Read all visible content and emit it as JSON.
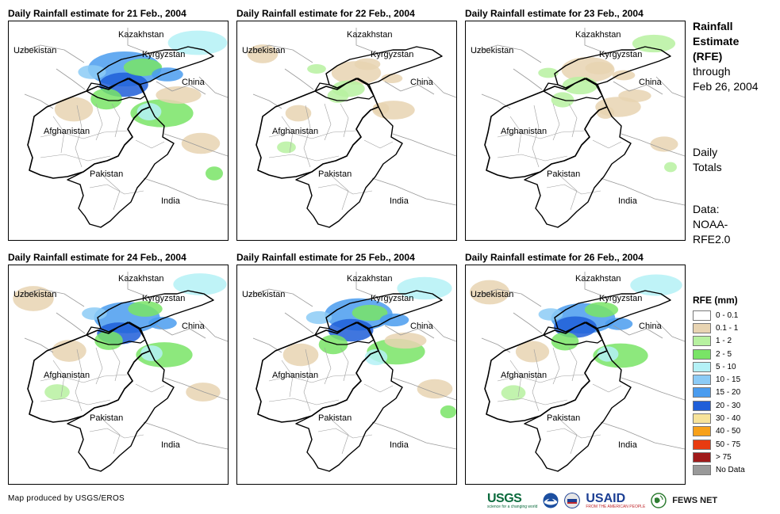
{
  "panels": [
    {
      "title": "Daily Rainfall estimate for 21 Feb., 2004",
      "intensity": 1.0
    },
    {
      "title": "Daily Rainfall estimate for 22 Feb., 2004",
      "intensity": 0.35
    },
    {
      "title": "Daily Rainfall estimate for 23 Feb., 2004",
      "intensity": 0.45
    },
    {
      "title": "Daily Rainfall estimate for 24 Feb., 2004",
      "intensity": 0.8
    },
    {
      "title": "Daily Rainfall estimate for 25 Feb., 2004",
      "intensity": 0.85
    },
    {
      "title": "Daily Rainfall estimate for 26 Feb., 2004",
      "intensity": 0.75
    }
  ],
  "map_labels": {
    "kazakhstan": "Kazakhstan",
    "uzbekistan": "Uzbekistan",
    "kyrgyzstan": "Kyrgyzstan",
    "china": "China",
    "afghanistan": "Afghanistan",
    "pakistan": "Pakistan",
    "india": "India"
  },
  "side": {
    "title_lines": [
      "Rainfall",
      "Estimate",
      "(RFE)"
    ],
    "subtitle_lines": [
      "through",
      "Feb 26, 2004"
    ],
    "daily_lines": [
      "Daily",
      "Totals"
    ],
    "data_lines": [
      "Data:",
      "NOAA-",
      "RFE2.0"
    ]
  },
  "legend": {
    "title": "RFE (mm)",
    "items": [
      {
        "label": "0 - 0.1",
        "color": "#ffffff"
      },
      {
        "label": "0.1 - 1",
        "color": "#e8d4b2"
      },
      {
        "label": "1 - 2",
        "color": "#b7f1a0"
      },
      {
        "label": "2 - 5",
        "color": "#79e466"
      },
      {
        "label": "5 - 10",
        "color": "#b4f1f6"
      },
      {
        "label": "10 - 15",
        "color": "#8ccbf6"
      },
      {
        "label": "15 - 20",
        "color": "#4a9cef"
      },
      {
        "label": "20 - 30",
        "color": "#1f5ed8"
      },
      {
        "label": "30 - 40",
        "color": "#f7e39a"
      },
      {
        "label": "40 - 50",
        "color": "#f7a11a"
      },
      {
        "label": "50 - 75",
        "color": "#e83b10"
      },
      {
        "label": "> 75",
        "color": "#a01a1a"
      },
      {
        "label": "No Data",
        "color": "#999999"
      }
    ]
  },
  "footer": {
    "credit": "Map produced by USGS/EROS",
    "logos": {
      "usgs": "USGS",
      "usgs_tagline": "science for a changing world",
      "usaid": "USAID",
      "usaid_tagline": "FROM THE AMERICAN PEOPLE",
      "fews": "FEWS NET"
    }
  }
}
